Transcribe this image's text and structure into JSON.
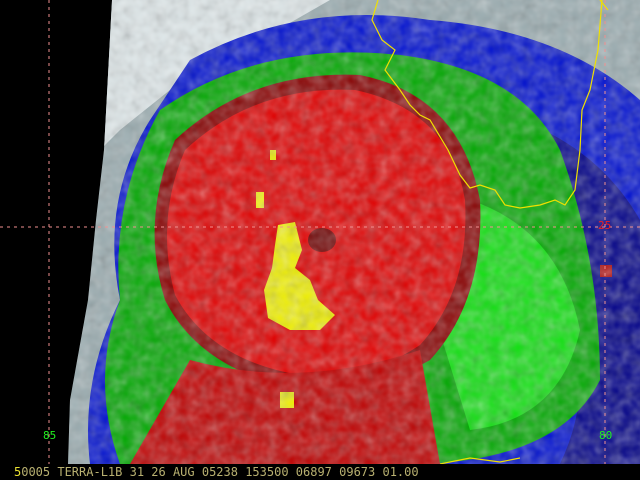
{
  "image": {
    "type": "infrared satellite image, color-enhanced",
    "colors": {
      "background": "#000000",
      "cold_cloud_white": "#e0e8e8",
      "grey": "#8a9a9c",
      "cyan": "#b0f0f0",
      "dark_blue": "#000090",
      "blue": "#0010e0",
      "green": "#00b800",
      "bright_green": "#10e010",
      "dark_red": "#800000",
      "red": "#e00000",
      "yellow": "#f0f000",
      "coastline": "#f0e000",
      "gridline": "#f09090"
    }
  },
  "grid_labels": {
    "lat_25": "25",
    "lon_80": "80",
    "lon_85": "85"
  },
  "footer": {
    "frame": "5",
    "text": "0005 TERRA-L1B 31 26 AUG 05238 153500 06897 09673 01.00"
  }
}
